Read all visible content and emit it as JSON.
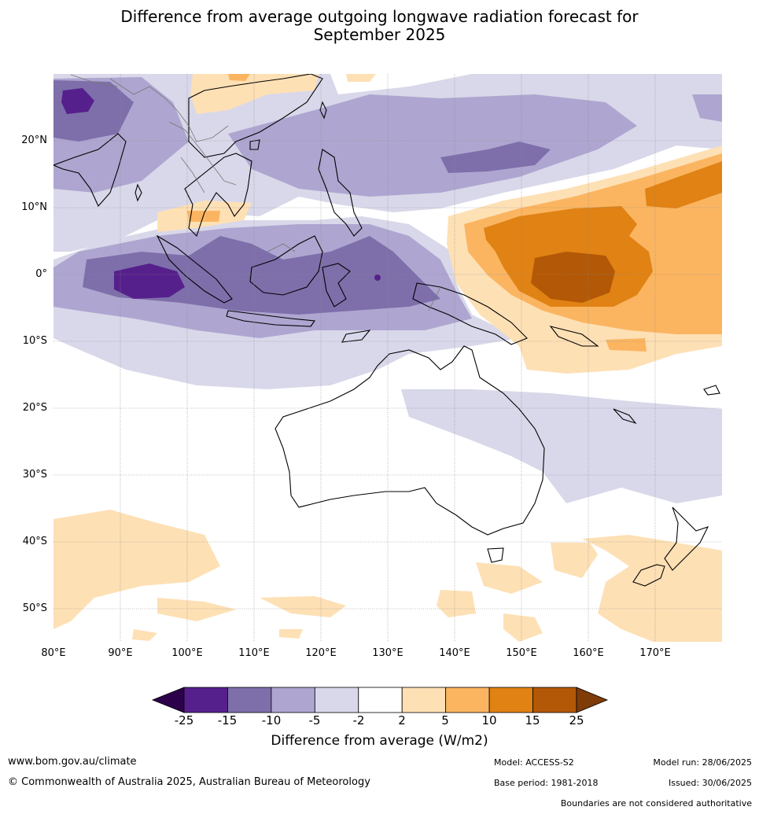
{
  "title_line1": "Difference from average outgoing longwave radiation forecast for",
  "title_line2": "September 2025",
  "map": {
    "lat_labels": [
      "20°N",
      "10°N",
      "0°",
      "10°S",
      "20°S",
      "30°S",
      "40°S",
      "50°S"
    ],
    "lon_labels": [
      "80°E",
      "90°E",
      "100°E",
      "110°E",
      "120°E",
      "130°E",
      "140°E",
      "150°E",
      "160°E",
      "170°E"
    ],
    "lat_range": [
      -55,
      30
    ],
    "lon_range": [
      80,
      180
    ]
  },
  "colorbar": {
    "ticks": [
      "-25",
      "-15",
      "-10",
      "-5",
      "-2",
      "2",
      "5",
      "10",
      "15",
      "25"
    ],
    "colors": [
      "#56208c",
      "#7e6fab",
      "#aea6d0",
      "#d8d8ea",
      "#ffffff",
      "#fee0b5",
      "#fbb561",
      "#e08214",
      "#b35806"
    ],
    "under_color": "#2d004b",
    "over_color": "#7f3b08",
    "label": "Difference from average (W/m2)"
  },
  "footer": {
    "url": "www.bom.gov.au/climate",
    "copyright": "© Commonwealth of Australia 2025, Australian Bureau of Meteorology",
    "model": "Model: ACCESS-S2",
    "base_period": "Base period: 1981-2018",
    "model_run": "Model run: 28/06/2025",
    "issued": "Issued: 30/06/2025",
    "boundaries": "Boundaries are not considered authoritative"
  }
}
